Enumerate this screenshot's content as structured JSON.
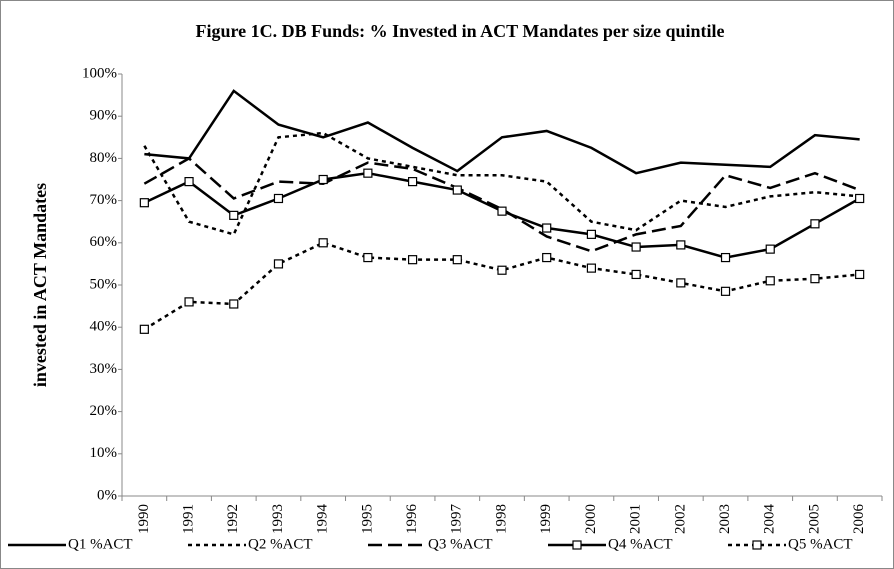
{
  "chart_data": {
    "type": "line",
    "title": "Figure 1C. DB Funds: % Invested in ACT Mandates per size quintile",
    "y_label": "invested in ACT Mandates",
    "categories": [
      "1990",
      "1991",
      "1992",
      "1993",
      "1994",
      "1995",
      "1996",
      "1997",
      "1998",
      "1999",
      "2000",
      "2001",
      "2002",
      "2003",
      "2004",
      "2005",
      "2006"
    ],
    "series": [
      {
        "name": "Q1 %ACT",
        "color": "#000000",
        "dash": "none",
        "marker": "none",
        "values": [
          81,
          80,
          96,
          88,
          85,
          88.5,
          82.5,
          77,
          85,
          86.5,
          82.5,
          76.5,
          79,
          78.5,
          78,
          85.5,
          84.5
        ]
      },
      {
        "name": "Q2 %ACT",
        "color": "#000000",
        "dash": "short",
        "marker": "none",
        "values": [
          83,
          65,
          62,
          85,
          86,
          80,
          78,
          76,
          76,
          74.5,
          65,
          63,
          70,
          68.5,
          71,
          72,
          71
        ]
      },
      {
        "name": "Q3 %ACT",
        "color": "#000000",
        "dash": "long",
        "marker": "none",
        "values": [
          74,
          80,
          70.5,
          74.5,
          74,
          79,
          77.5,
          73,
          68,
          61.5,
          58,
          62,
          64,
          76,
          73,
          76.5,
          72.5
        ]
      },
      {
        "name": "Q4 %ACT",
        "color": "#000000",
        "dash": "none",
        "marker": "square",
        "values": [
          69.5,
          74.5,
          66.5,
          70.5,
          75,
          76.5,
          74.5,
          72.5,
          67.5,
          63.5,
          62,
          59,
          59.5,
          56.5,
          58.5,
          64.5,
          70.5
        ]
      },
      {
        "name": "Q5 %ACT",
        "color": "#000000",
        "dash": "short",
        "marker": "square",
        "values": [
          39.5,
          46,
          45.5,
          55,
          60,
          56.5,
          56,
          56,
          53.5,
          56.5,
          54,
          52.5,
          50.5,
          48.5,
          51,
          51.5,
          52.5
        ]
      }
    ],
    "ylim": [
      0,
      100
    ],
    "yticks": [
      {
        "value": 0,
        "label": "0%"
      },
      {
        "value": 10,
        "label": "10%"
      },
      {
        "value": 20,
        "label": "20%"
      },
      {
        "value": 30,
        "label": "30%"
      },
      {
        "value": 40,
        "label": "40%"
      },
      {
        "value": 50,
        "label": "50%"
      },
      {
        "value": 60,
        "label": "60%"
      },
      {
        "value": 70,
        "label": "70%"
      },
      {
        "value": 80,
        "label": "80%"
      },
      {
        "value": 90,
        "label": "90%"
      },
      {
        "value": 100,
        "label": "100%"
      }
    ],
    "grid": false,
    "legend": "bottom"
  }
}
